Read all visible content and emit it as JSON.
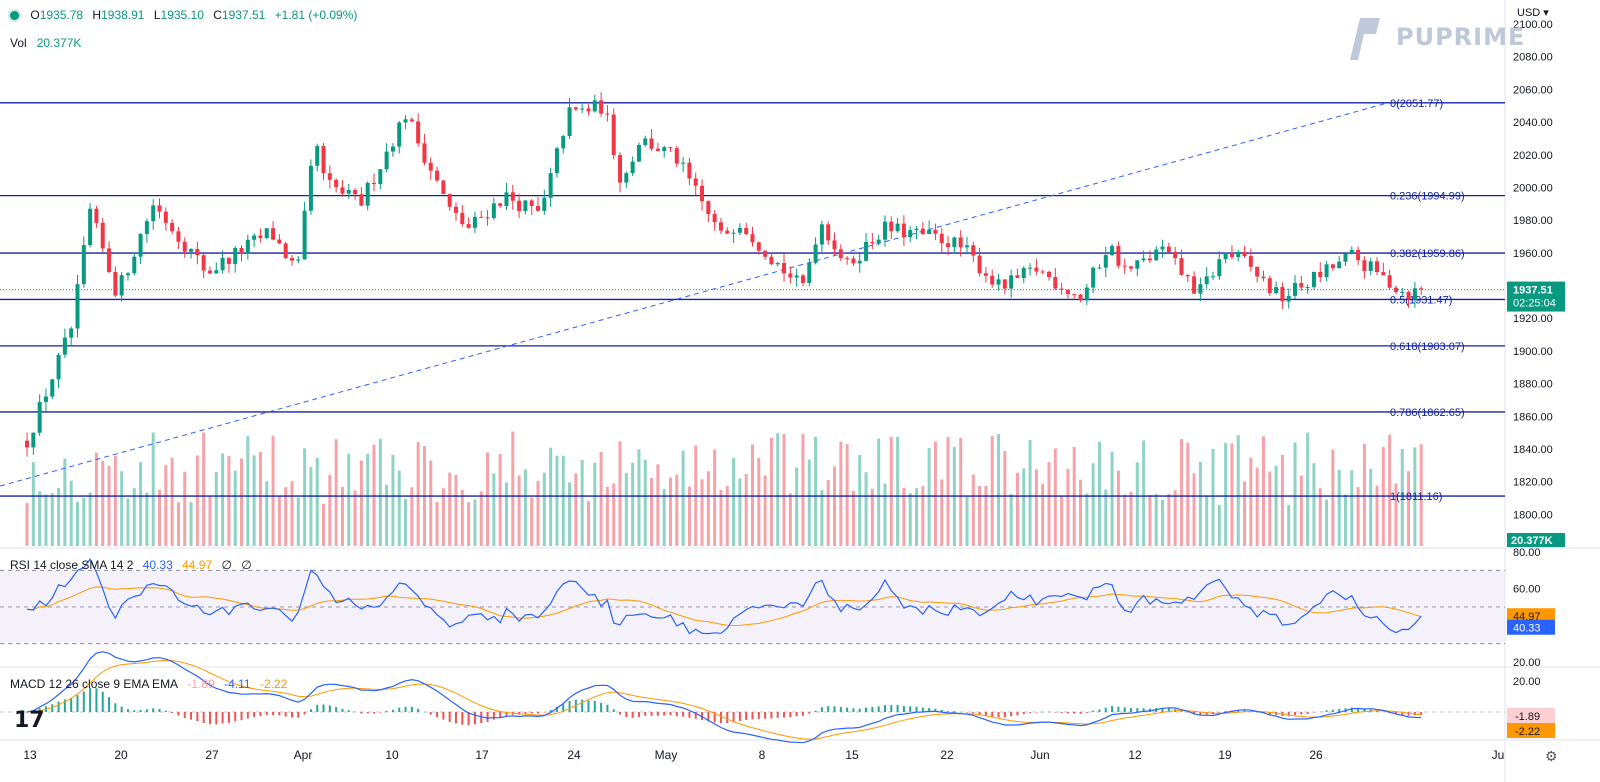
{
  "header": {
    "ohlc": [
      {
        "label": "O",
        "value": "1935.78"
      },
      {
        "label": "H",
        "value": "1938.91"
      },
      {
        "label": "L",
        "value": "1935.10"
      },
      {
        "label": "C",
        "value": "1937.51"
      }
    ],
    "change": "+1.81 (+0.09%)",
    "vol_label": "Vol",
    "vol_value": "20.377K"
  },
  "brand": "PUPRIME",
  "currency": "USD",
  "current": {
    "price": "1937.51",
    "countdown": "02:25:04",
    "price_value": 1937.51
  },
  "colors": {
    "up": "#089981",
    "down": "#f23645",
    "fib": "#1422a6",
    "rsi": "#2962ff",
    "signal": "#ff9800"
  },
  "chart_data": {
    "type": "candlestick",
    "y_axis": {
      "min": 1780,
      "max": 2100,
      "ticks": [
        1800,
        1820,
        1840,
        1860,
        1880,
        1900,
        1920,
        1940,
        1960,
        1980,
        2000,
        2020,
        2040,
        2060,
        2080,
        2100
      ]
    },
    "x_axis": {
      "labels": [
        "13",
        "20",
        "27",
        "Apr",
        "10",
        "17",
        "24",
        "May",
        "8",
        "15",
        "22",
        "Jun",
        "12",
        "19",
        "26",
        "Ju"
      ]
    },
    "fib_levels": [
      {
        "label": "0",
        "value": 2051.77
      },
      {
        "label": "0.236",
        "value": 1994.99
      },
      {
        "label": "0.382",
        "value": 1959.86
      },
      {
        "label": "0.5",
        "value": 1931.47
      },
      {
        "label": "0.618",
        "value": 1903.07
      },
      {
        "label": "0.786",
        "value": 1862.65
      },
      {
        "label": "1",
        "value": 1811.16
      }
    ],
    "series": [
      {
        "name": "close",
        "days": [
          13,
          18,
          20,
          23,
          27,
          31,
          33,
          40,
          43,
          45,
          46,
          50,
          55,
          60,
          62,
          66,
          70,
          73,
          77,
          79,
          81,
          85,
          90,
          92,
          96,
          99,
          101,
          104,
          108,
          115,
          117,
          121,
          125,
          130,
          133,
          135,
          139,
          143,
          146,
          148,
          152,
          160,
          166,
          168
        ],
        "values": [
          1845,
          1915,
          1985,
          1935,
          1990,
          1962,
          1948,
          1973,
          1948,
          2030,
          2003,
          1990,
          2045,
          1985,
          1975,
          1995,
          1983,
          2045,
          2050,
          2002,
          2030,
          2018,
          1970,
          1980,
          1955,
          1938,
          1980,
          1952,
          1975,
          1968,
          1962,
          1938,
          1950,
          1932,
          1965,
          1948,
          1962,
          1935,
          1960,
          1955,
          1932,
          1958,
          1935,
          1937.51
        ]
      }
    ],
    "rsi": {
      "label": "RSI 14 close SMA 14 2",
      "value": "40.33",
      "sma": "44.97",
      "extra": [
        "∅",
        "∅"
      ],
      "axis": [
        "80.00",
        "60.00",
        "40.00",
        "20.00"
      ]
    },
    "macd": {
      "label": "MACD 12 26 close 9 EMA EMA",
      "hist": "-1.89",
      "macd": "-4.11",
      "signal": "-2.22",
      "axis": [
        "20.00"
      ]
    }
  }
}
